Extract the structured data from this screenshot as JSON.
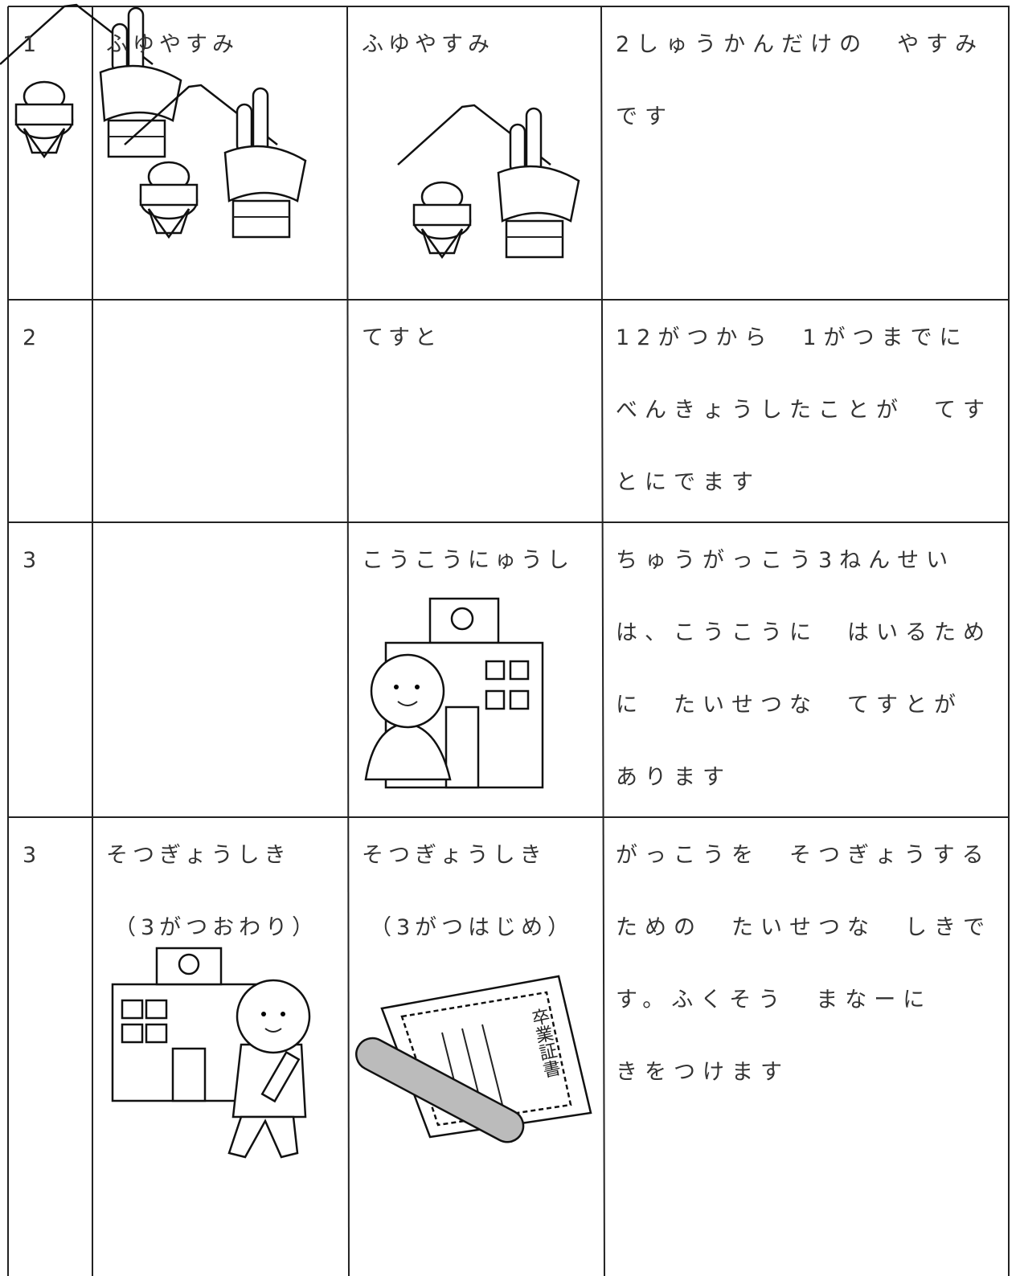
{
  "table": {
    "rows": [
      {
        "number": "1",
        "col2": [
          "ふゆやすみ"
        ],
        "col3": [
          "ふゆやすみ"
        ],
        "col4": [
          "2しゅうかんだけの　やすみ",
          "です"
        ]
      },
      {
        "number": "2",
        "col2": [],
        "col3": [
          "てすと"
        ],
        "col4": [
          "12がつから　1がつまでに",
          "べんきょうしたことが　てす",
          "とにでます"
        ]
      },
      {
        "number": "3",
        "col2": [],
        "col3": [
          "こうこうにゅうし"
        ],
        "col4": [
          "ちゅうがっこう3ねんせい",
          "は、こうこうに　はいるため",
          "に　たいせつな　てすとが",
          "あります"
        ]
      },
      {
        "number": "3",
        "col2": [
          "そつぎょうしき",
          "（3がつおわり）"
        ],
        "col3": [
          "そつぎょうしき",
          "（3がつはじめ）"
        ],
        "col4": [
          "がっこうを　そつぎょうする",
          "ための　たいせつな　しきで",
          "す。ふくそう　まなーに",
          "きをつけます"
        ],
        "diploma_text": "卒業証書"
      }
    ]
  }
}
